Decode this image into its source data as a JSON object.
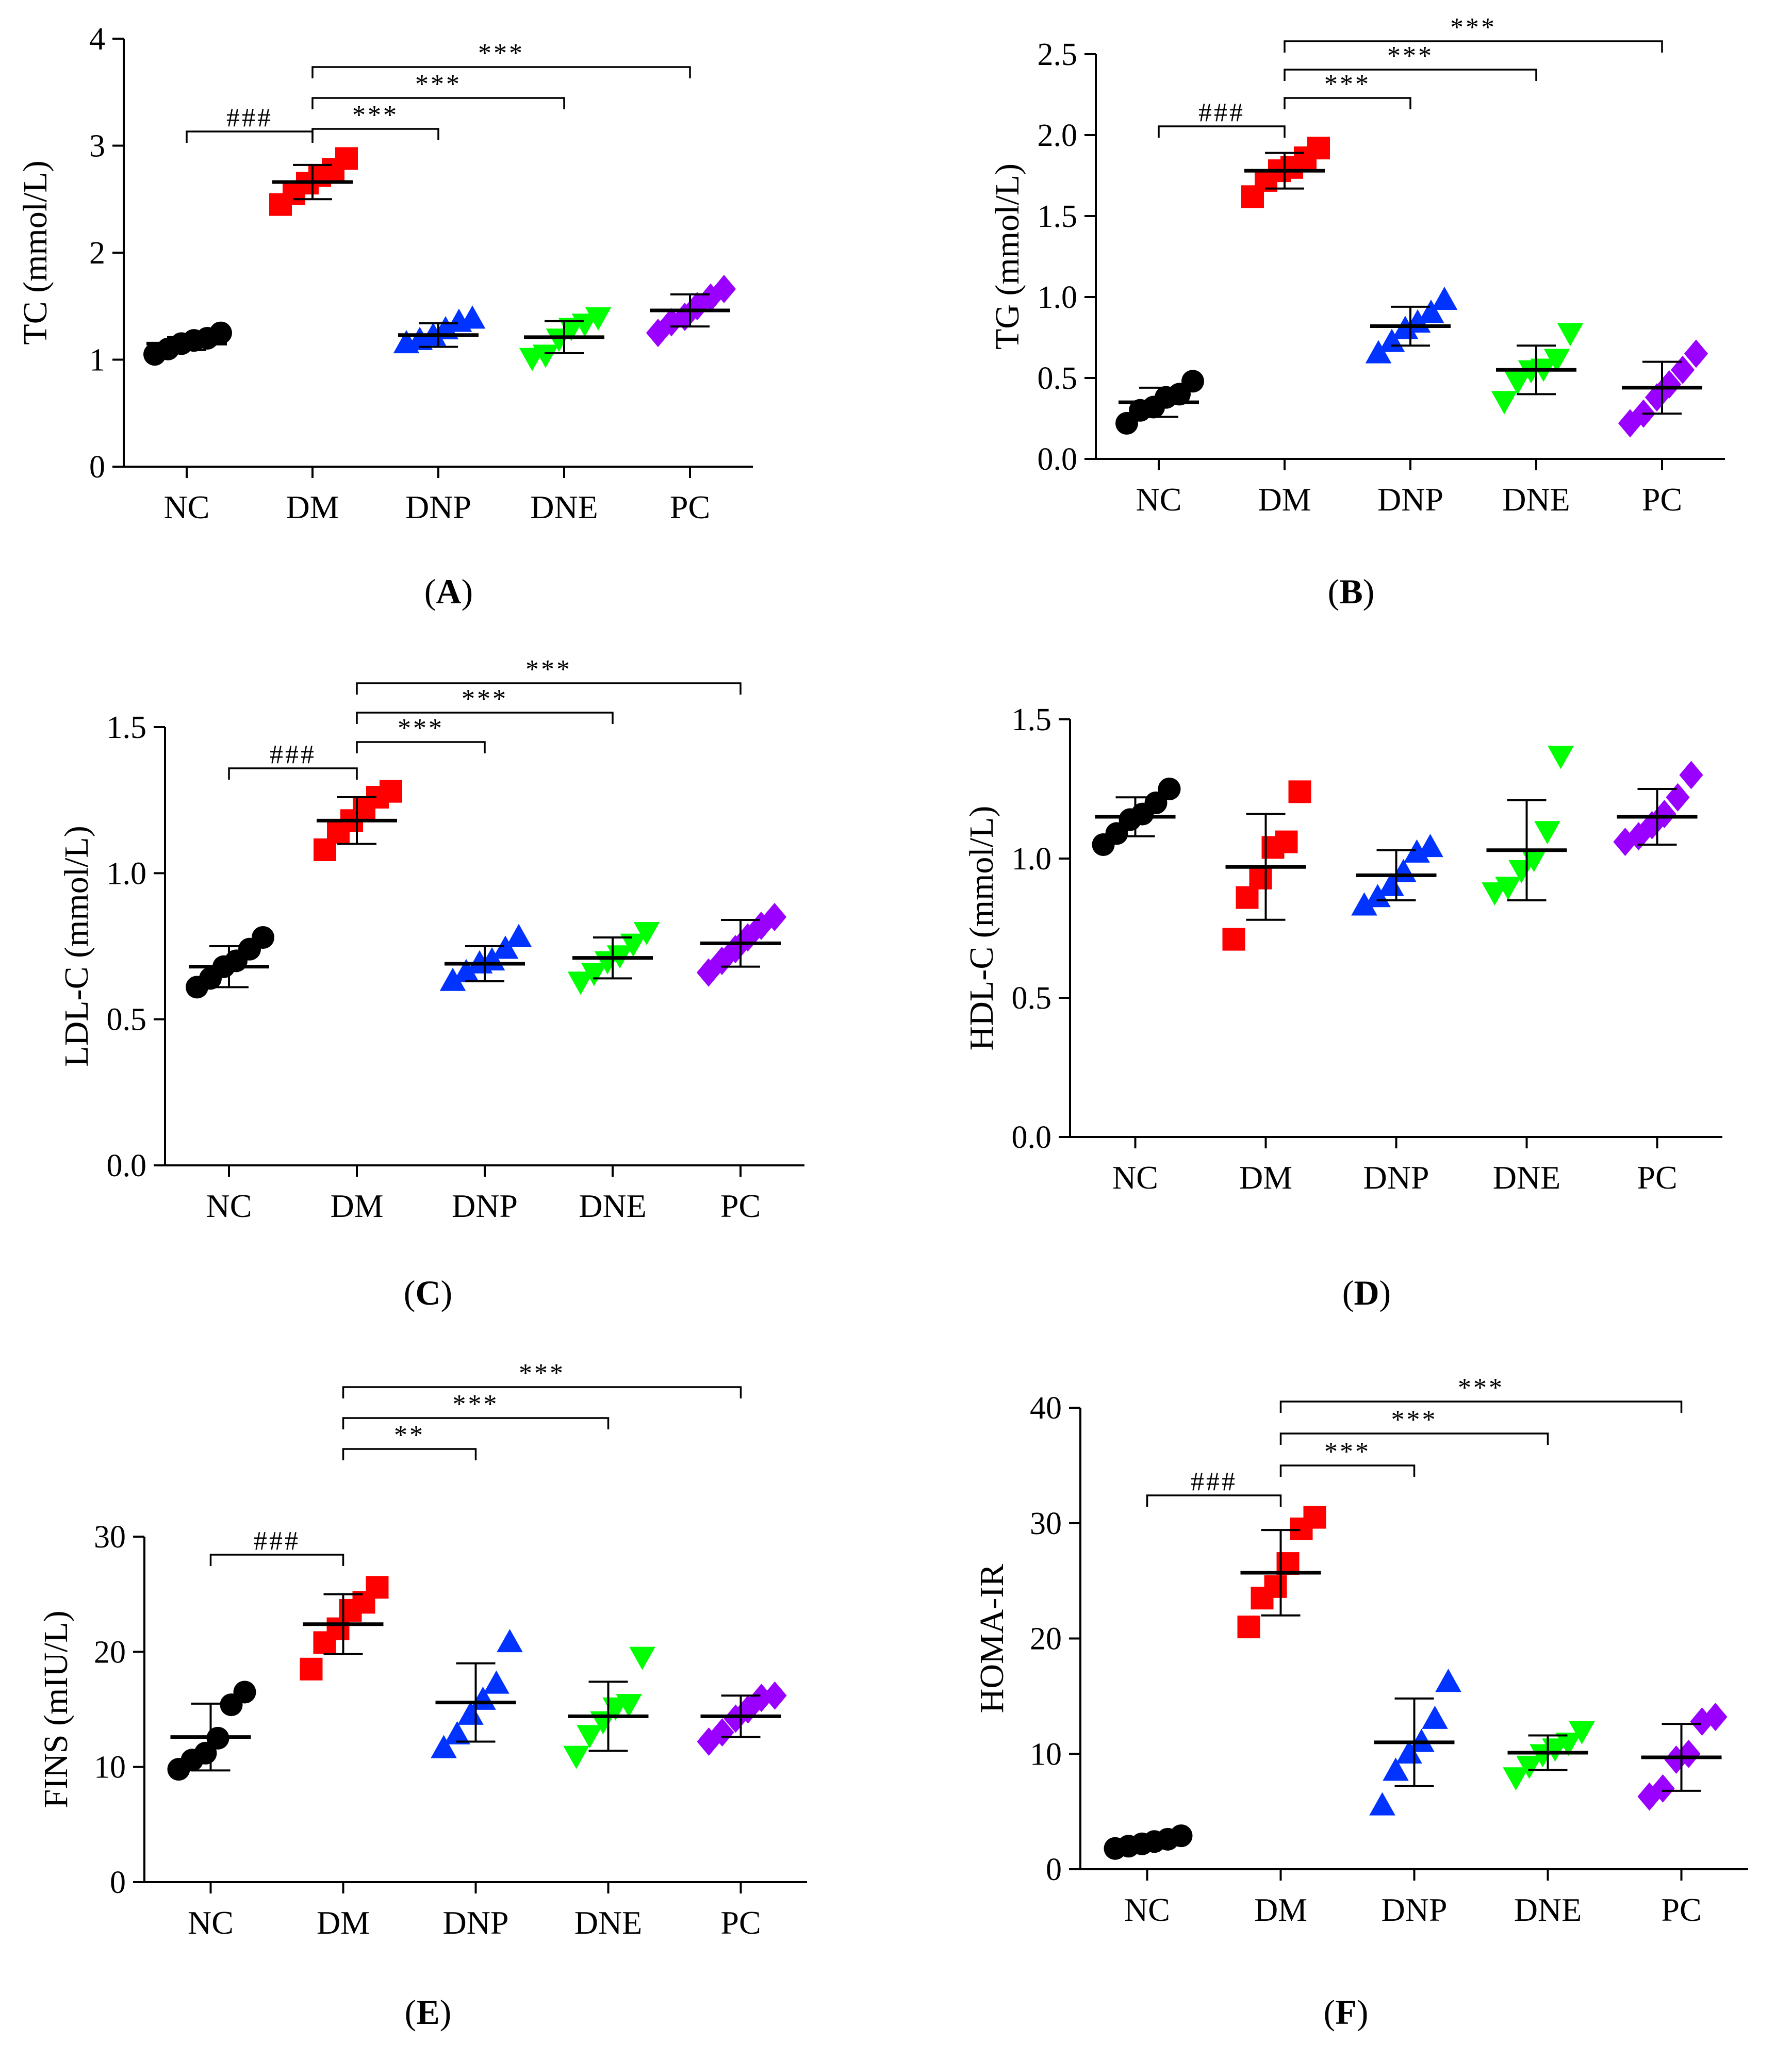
{
  "figure": {
    "categories": [
      "NC",
      "DM",
      "DNP",
      "DNE",
      "PC"
    ],
    "group_colors": {
      "NC": "#000000",
      "DM": "#ff0000",
      "DNP": "#0033ff",
      "DNE": "#00ff00",
      "PC": "#9900ff"
    },
    "group_markers": {
      "NC": "circle",
      "DM": "square",
      "DNP": "triangle-up",
      "DNE": "triangle-down",
      "PC": "diamond"
    }
  },
  "chart_data": [
    {
      "id": "A",
      "type": "scatter",
      "panel_label": "A",
      "ylabel": "TC (mmol/L)",
      "ylim": [
        0,
        4
      ],
      "yticks": [
        "0",
        "1",
        "2",
        "3",
        "4"
      ],
      "categories": [
        "NC",
        "DM",
        "DNP",
        "DNE",
        "PC"
      ],
      "series": [
        {
          "name": "NC",
          "points": [
            1.05,
            1.1,
            1.15,
            1.18,
            1.2,
            1.25
          ],
          "mean": 1.15,
          "sd": 0.06
        },
        {
          "name": "DM",
          "points": [
            2.45,
            2.55,
            2.65,
            2.72,
            2.78,
            2.88
          ],
          "mean": 2.66,
          "sd": 0.16
        },
        {
          "name": "DNP",
          "points": [
            1.15,
            1.18,
            1.22,
            1.28,
            1.35,
            1.38
          ],
          "mean": 1.23,
          "sd": 0.11
        },
        {
          "name": "DNE",
          "points": [
            1.02,
            1.05,
            1.2,
            1.3,
            1.34,
            1.4
          ],
          "mean": 1.21,
          "sd": 0.15
        },
        {
          "name": "PC",
          "points": [
            1.25,
            1.35,
            1.4,
            1.5,
            1.58,
            1.66
          ],
          "mean": 1.46,
          "sd": 0.15
        }
      ],
      "comparisons": [
        {
          "from": "NC",
          "to": "DM",
          "label": "###"
        },
        {
          "from": "DM",
          "to": "DNP",
          "label": "***"
        },
        {
          "from": "DM",
          "to": "DNE",
          "label": "***"
        },
        {
          "from": "DM",
          "to": "PC",
          "label": "***"
        }
      ]
    },
    {
      "id": "B",
      "type": "scatter",
      "panel_label": "B",
      "ylabel": "TG (mmol/L)",
      "ylim": [
        0,
        2.5
      ],
      "yticks": [
        "0.0",
        "0.5",
        "1.0",
        "1.5",
        "2.0",
        "2.5"
      ],
      "categories": [
        "NC",
        "DM",
        "DNP",
        "DNE",
        "PC"
      ],
      "series": [
        {
          "name": "NC",
          "points": [
            0.22,
            0.3,
            0.32,
            0.38,
            0.4,
            0.48
          ],
          "mean": 0.35,
          "sd": 0.09
        },
        {
          "name": "DM",
          "points": [
            1.62,
            1.72,
            1.78,
            1.8,
            1.86,
            1.92
          ],
          "mean": 1.78,
          "sd": 0.11
        },
        {
          "name": "DNP",
          "points": [
            0.65,
            0.72,
            0.8,
            0.84,
            0.9,
            0.98
          ],
          "mean": 0.82,
          "sd": 0.12
        },
        {
          "name": "DNE",
          "points": [
            0.36,
            0.48,
            0.55,
            0.56,
            0.62,
            0.78
          ],
          "mean": 0.55,
          "sd": 0.15
        },
        {
          "name": "PC",
          "points": [
            0.22,
            0.28,
            0.38,
            0.46,
            0.55,
            0.65
          ],
          "mean": 0.44,
          "sd": 0.16
        }
      ],
      "comparisons": [
        {
          "from": "NC",
          "to": "DM",
          "label": "###"
        },
        {
          "from": "DM",
          "to": "DNP",
          "label": "***"
        },
        {
          "from": "DM",
          "to": "DNE",
          "label": "***"
        },
        {
          "from": "DM",
          "to": "PC",
          "label": "***"
        }
      ]
    },
    {
      "id": "C",
      "type": "scatter",
      "panel_label": "C",
      "ylabel": "LDL-C (mmol/L)",
      "ylim": [
        0,
        1.5
      ],
      "yticks": [
        "0.0",
        "0.5",
        "1.0",
        "1.5"
      ],
      "categories": [
        "NC",
        "DM",
        "DNP",
        "DNE",
        "PC"
      ],
      "series": [
        {
          "name": "NC",
          "points": [
            0.61,
            0.64,
            0.68,
            0.7,
            0.74,
            0.78
          ],
          "mean": 0.68,
          "sd": 0.07
        },
        {
          "name": "DM",
          "points": [
            1.08,
            1.14,
            1.18,
            1.22,
            1.26,
            1.28
          ],
          "mean": 1.18,
          "sd": 0.08
        },
        {
          "name": "DNP",
          "points": [
            0.63,
            0.66,
            0.69,
            0.7,
            0.74,
            0.78
          ],
          "mean": 0.69,
          "sd": 0.06
        },
        {
          "name": "DNE",
          "points": [
            0.63,
            0.66,
            0.7,
            0.72,
            0.76,
            0.8
          ],
          "mean": 0.71,
          "sd": 0.07
        },
        {
          "name": "PC",
          "points": [
            0.66,
            0.7,
            0.74,
            0.78,
            0.82,
            0.85
          ],
          "mean": 0.76,
          "sd": 0.08
        }
      ],
      "comparisons": [
        {
          "from": "NC",
          "to": "DM",
          "label": "###"
        },
        {
          "from": "DM",
          "to": "DNP",
          "label": "***"
        },
        {
          "from": "DM",
          "to": "DNE",
          "label": "***"
        },
        {
          "from": "DM",
          "to": "PC",
          "label": "***"
        }
      ]
    },
    {
      "id": "D",
      "type": "scatter",
      "panel_label": "D",
      "ylabel": "HDL-C (mmol/L)",
      "ylim": [
        0,
        1.5
      ],
      "yticks": [
        "0.0",
        "0.5",
        "1.0",
        "1.5"
      ],
      "categories": [
        "NC",
        "DM",
        "DNP",
        "DNE",
        "PC"
      ],
      "series": [
        {
          "name": "NC",
          "points": [
            1.05,
            1.09,
            1.14,
            1.16,
            1.2,
            1.25
          ],
          "mean": 1.15,
          "sd": 0.07
        },
        {
          "name": "DM",
          "points": [
            0.71,
            0.86,
            0.93,
            1.04,
            1.06,
            1.24
          ],
          "mean": 0.97,
          "sd": 0.19
        },
        {
          "name": "DNP",
          "points": [
            0.83,
            0.86,
            0.9,
            0.95,
            1.02,
            1.04
          ],
          "mean": 0.94,
          "sd": 0.09
        },
        {
          "name": "DNE",
          "points": [
            0.88,
            0.9,
            0.96,
            1.0,
            1.1,
            1.37
          ],
          "mean": 1.03,
          "sd": 0.18
        },
        {
          "name": "PC",
          "points": [
            1.06,
            1.08,
            1.12,
            1.16,
            1.22,
            1.3
          ],
          "mean": 1.15,
          "sd": 0.1
        }
      ],
      "comparisons": []
    },
    {
      "id": "E",
      "type": "scatter",
      "panel_label": "E",
      "ylabel": "FINS (mIU/L)",
      "ylim": [
        0,
        30
      ],
      "yticks": [
        "0",
        "10",
        "20",
        "30"
      ],
      "categories": [
        "NC",
        "DM",
        "DNP",
        "DNE",
        "PC"
      ],
      "series": [
        {
          "name": "NC",
          "points": [
            9.8,
            10.6,
            11.2,
            12.5,
            15.4,
            16.5
          ],
          "mean": 12.6,
          "sd": 2.9
        },
        {
          "name": "DM",
          "points": [
            18.5,
            20.8,
            22.0,
            23.6,
            24.3,
            25.6
          ],
          "mean": 22.4,
          "sd": 2.6
        },
        {
          "name": "DNP",
          "points": [
            11.6,
            12.8,
            14.5,
            15.8,
            17.2,
            20.8
          ],
          "mean": 15.6,
          "sd": 3.4
        },
        {
          "name": "DNE",
          "points": [
            11.0,
            12.8,
            14.0,
            15.2,
            15.5,
            19.6
          ],
          "mean": 14.4,
          "sd": 3.0
        },
        {
          "name": "PC",
          "points": [
            12.2,
            13.0,
            14.2,
            15.0,
            16.0,
            16.2
          ],
          "mean": 14.4,
          "sd": 1.8
        }
      ],
      "comparisons": [
        {
          "from": "NC",
          "to": "DM",
          "label": "###"
        },
        {
          "from": "DM",
          "to": "DNP",
          "label": "**"
        },
        {
          "from": "DM",
          "to": "DNE",
          "label": "***"
        },
        {
          "from": "DM",
          "to": "PC",
          "label": "***"
        }
      ]
    },
    {
      "id": "F",
      "type": "scatter",
      "panel_label": "F",
      "ylabel": "HOMA-IR",
      "ylim": [
        0,
        40
      ],
      "yticks": [
        "0",
        "10",
        "20",
        "30",
        "40"
      ],
      "categories": [
        "NC",
        "DM",
        "DNP",
        "DNE",
        "PC"
      ],
      "series": [
        {
          "name": "NC",
          "points": [
            1.8,
            2.0,
            2.2,
            2.4,
            2.6,
            2.9
          ],
          "mean": 2.3,
          "sd": 0.4
        },
        {
          "name": "DM",
          "points": [
            21.0,
            23.5,
            24.5,
            26.5,
            29.5,
            30.5
          ],
          "mean": 25.7,
          "sd": 3.7
        },
        {
          "name": "DNP",
          "points": [
            5.5,
            8.5,
            10.0,
            11.0,
            13.0,
            16.2
          ],
          "mean": 11.0,
          "sd": 3.8
        },
        {
          "name": "DNE",
          "points": [
            8.0,
            9.0,
            10.0,
            10.5,
            11.0,
            12.0
          ],
          "mean": 10.1,
          "sd": 1.5
        },
        {
          "name": "PC",
          "points": [
            6.3,
            7.0,
            9.5,
            10.0,
            12.8,
            13.2
          ],
          "mean": 9.7,
          "sd": 2.9
        }
      ],
      "comparisons": [
        {
          "from": "NC",
          "to": "DM",
          "label": "###"
        },
        {
          "from": "DM",
          "to": "DNP",
          "label": "***"
        },
        {
          "from": "DM",
          "to": "DNE",
          "label": "***"
        },
        {
          "from": "DM",
          "to": "PC",
          "label": "***"
        }
      ]
    }
  ]
}
